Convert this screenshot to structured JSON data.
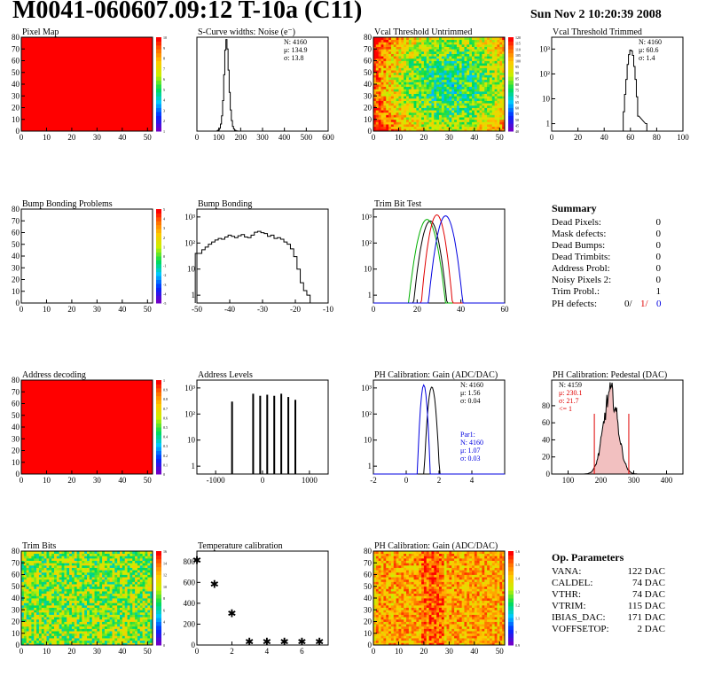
{
  "header": {
    "title": "M0041-060607.09:12 T-10a (C11)",
    "date": "Sun Nov  2 10:20:39 2008"
  },
  "colors": {
    "map_red": "#ff0000",
    "heat_low": "#2020ff",
    "heat_high": "#ff2000",
    "black": "#000000",
    "green": "#00b000",
    "red": "#e00000",
    "blue": "#0000e0"
  },
  "summary": {
    "title": "Summary",
    "items": [
      {
        "label": "Dead Pixels:",
        "value": "0"
      },
      {
        "label": "Mask defects:",
        "value": "0"
      },
      {
        "label": "Dead Bumps:",
        "value": "0"
      },
      {
        "label": "Dead Trimbits:",
        "value": "0"
      },
      {
        "label": "Address Probl:",
        "value": "0"
      },
      {
        "label": "Noisy Pixels 2:",
        "value": "0"
      },
      {
        "label": "Trim Probl.:",
        "value": "1"
      }
    ],
    "ph_defects": {
      "label": "PH defects:",
      "v1": "0/",
      "v2": "1/",
      "v3": "0"
    }
  },
  "op_params": {
    "title": "Op. Parameters",
    "items": [
      {
        "label": "VANA:",
        "value": "122 DAC"
      },
      {
        "label": "CALDEL:",
        "value": "74 DAC"
      },
      {
        "label": "VTHR:",
        "value": "74 DAC"
      },
      {
        "label": "VTRIM:",
        "value": "115 DAC"
      },
      {
        "label": "IBIAS_DAC:",
        "value": "171 DAC"
      },
      {
        "label": "VOFFSETOP:",
        "value": "2 DAC"
      }
    ]
  },
  "chart_data": [
    {
      "id": "pixel-map",
      "type": "heatmap",
      "title": "Pixel Map",
      "xlim": [
        0,
        52
      ],
      "ylim": [
        0,
        80
      ],
      "xticks": [
        "0",
        "10",
        "20",
        "30",
        "40",
        "50"
      ],
      "yticks": [
        "0",
        "10",
        "20",
        "30",
        "40",
        "50",
        "60",
        "70",
        "80"
      ],
      "colorbar": "rainbow",
      "cbar_ticks": [
        "1",
        "2",
        "3",
        "4",
        "5",
        "6",
        "7",
        "8",
        "9",
        "10"
      ],
      "fill": "uniform_red"
    },
    {
      "id": "scurve-noise",
      "type": "bar",
      "title": "S-Curve widths: Noise (e⁻)",
      "xlim": [
        0,
        600
      ],
      "ylim": [
        0,
        800
      ],
      "xticks": [
        "0",
        "100",
        "200",
        "300",
        "400",
        "500",
        "600"
      ],
      "yticks": [],
      "stats": [
        "N: 4160",
        "μ: 134.9",
        "σ: 13.8"
      ],
      "x": [
        95,
        100,
        105,
        110,
        115,
        120,
        125,
        130,
        135,
        140,
        145,
        150,
        155,
        160,
        165,
        170,
        175,
        180,
        185
      ],
      "values": [
        5,
        10,
        25,
        60,
        130,
        260,
        480,
        690,
        780,
        700,
        520,
        330,
        180,
        90,
        40,
        18,
        8,
        3,
        1
      ]
    },
    {
      "id": "vcal-untrimmed",
      "type": "heatmap",
      "title": "Vcal Threshold Untrimmed",
      "xlim": [
        0,
        52
      ],
      "ylim": [
        0,
        80
      ],
      "xticks": [
        "0",
        "10",
        "20",
        "30",
        "40",
        "50"
      ],
      "yticks": [
        "0",
        "10",
        "20",
        "30",
        "40",
        "50",
        "60",
        "70",
        "80"
      ],
      "colorbar": "rainbow",
      "cbar_ticks": [
        "40",
        "45",
        "50",
        "55",
        "60",
        "65",
        "70",
        "75",
        "80",
        "85",
        "90",
        "95",
        "100",
        "105",
        "110",
        "115",
        "120"
      ],
      "fill": "noise_cool"
    },
    {
      "id": "vcal-trimmed",
      "type": "bar",
      "title": "Vcal Threshold Trimmed",
      "xlim": [
        0,
        100
      ],
      "ylim": [
        0.5,
        3000
      ],
      "ylog": true,
      "xticks": [
        "0",
        "20",
        "40",
        "60",
        "80",
        "100"
      ],
      "yticks": [
        "1",
        "10",
        "10²",
        "10³"
      ],
      "stats": [
        "N: 4160",
        "μ: 60.6",
        "σ:  1.4"
      ],
      "x": [
        55,
        56,
        57,
        58,
        59,
        60,
        61,
        62,
        63,
        64,
        65,
        66,
        72
      ],
      "values": [
        3,
        15,
        60,
        240,
        600,
        900,
        850,
        560,
        200,
        60,
        12,
        2,
        1
      ]
    },
    {
      "id": "bump-bonding-problems",
      "type": "heatmap",
      "title": "Bump Bonding Problems",
      "xlim": [
        0,
        52
      ],
      "ylim": [
        0,
        80
      ],
      "xticks": [
        "0",
        "10",
        "20",
        "30",
        "40",
        "50"
      ],
      "yticks": [
        "0",
        "10",
        "20",
        "30",
        "40",
        "50",
        "60",
        "70",
        "80"
      ],
      "colorbar": "rainbow",
      "cbar_ticks": [
        "-5",
        "-4",
        "-3",
        "-2",
        "-1",
        "0",
        "1",
        "2",
        "3",
        "4",
        "5"
      ],
      "fill": "empty"
    },
    {
      "id": "bump-bonding",
      "type": "bar",
      "title": "Bump Bonding",
      "xlim": [
        -50,
        -10
      ],
      "ylim": [
        0.5,
        2000
      ],
      "ylog": true,
      "xticks": [
        "-50",
        "-40",
        "-30",
        "-20",
        "-10"
      ],
      "yticks": [
        "1",
        "10",
        "10²",
        "10³"
      ],
      "x": [
        -50,
        -49,
        -48,
        -47,
        -46,
        -45,
        -44,
        -43,
        -42,
        -41,
        -40,
        -39,
        -38,
        -37,
        -36,
        -35,
        -34,
        -33,
        -32,
        -31,
        -30,
        -29,
        -28,
        -27,
        -26,
        -25,
        -24,
        -23,
        -22,
        -21,
        -20,
        -19,
        -18,
        -17,
        -16
      ],
      "values": [
        40,
        40,
        55,
        70,
        90,
        110,
        130,
        150,
        140,
        170,
        200,
        180,
        160,
        190,
        210,
        170,
        160,
        200,
        260,
        280,
        250,
        230,
        180,
        200,
        150,
        160,
        140,
        110,
        90,
        60,
        30,
        10,
        3,
        1.5,
        1
      ]
    },
    {
      "id": "trim-bit-test",
      "type": "line",
      "title": "Trim Bit Test",
      "xlim": [
        0,
        60
      ],
      "ylim": [
        0.5,
        2000
      ],
      "ylog": true,
      "xticks": [
        "0",
        "20",
        "40",
        "60"
      ],
      "yticks": [
        "1",
        "10",
        "10²",
        "10³"
      ],
      "series": [
        {
          "color": "black",
          "center": 26,
          "width": 2.0,
          "peak": 700
        },
        {
          "color": "green",
          "center": 24.5,
          "width": 2.2,
          "peak": 800
        },
        {
          "color": "red",
          "center": 29,
          "width": 1.8,
          "peak": 1200
        },
        {
          "color": "blue",
          "center": 33,
          "width": 2.0,
          "peak": 1100
        }
      ]
    },
    {
      "id": "address-decoding",
      "type": "heatmap",
      "title": "Address decoding",
      "xlim": [
        0,
        52
      ],
      "ylim": [
        0,
        80
      ],
      "xticks": [
        "0",
        "10",
        "20",
        "30",
        "40",
        "50"
      ],
      "yticks": [
        "0",
        "10",
        "20",
        "30",
        "40",
        "50",
        "60",
        "70",
        "80"
      ],
      "colorbar": "rainbow",
      "cbar_ticks": [
        "0",
        "0.1",
        "0.2",
        "0.3",
        "0.4",
        "0.5",
        "0.6",
        "0.7",
        "0.8",
        "0.9",
        "1"
      ],
      "fill": "uniform_red"
    },
    {
      "id": "address-levels",
      "type": "bar",
      "title": "Address Levels",
      "xlim": [
        -1400,
        1400
      ],
      "ylim": [
        0.5,
        2000
      ],
      "ylog": true,
      "xticks": [
        "-1000",
        "0",
        "1000"
      ],
      "yticks": [
        "1",
        "10",
        "10²",
        "10³"
      ],
      "x": [
        -650,
        -200,
        -50,
        100,
        250,
        400,
        550,
        700
      ],
      "values": [
        300,
        600,
        500,
        550,
        500,
        600,
        450,
        350
      ]
    },
    {
      "id": "ph-gain-hist",
      "type": "bar",
      "title": "PH Calibration: Gain (ADC/DAC)",
      "xlim": [
        -2,
        6
      ],
      "ylim": [
        0.5,
        2000
      ],
      "ylog": true,
      "xticks": [
        "-2",
        "0",
        "2",
        "4"
      ],
      "yticks": [
        "1",
        "10",
        "10²",
        "10³"
      ],
      "stats": [
        "N: 4160",
        "μ: 1.56",
        "σ: 0.04"
      ],
      "stats2": [
        "Par1:",
        "N: 4160",
        "μ: 1.07",
        "σ: 0.03"
      ],
      "series": [
        {
          "color": "black",
          "center": 1.56,
          "width": 0.12,
          "peak": 1100
        },
        {
          "color": "blue",
          "center": 1.07,
          "width": 0.1,
          "peak": 1300
        }
      ]
    },
    {
      "id": "ph-pedestal",
      "type": "bar",
      "title": "PH Calibration: Pedestal (DAC)",
      "xlim": [
        50,
        450
      ],
      "ylim": [
        0,
        110
      ],
      "xticks": [
        "100",
        "200",
        "300",
        "400"
      ],
      "yticks": [
        "0",
        "20",
        "40",
        "60",
        "80"
      ],
      "stats": [
        "N: 4159",
        "μ: 230.1",
        "σ: 21.7",
        "<= 1"
      ],
      "center": 230,
      "width": 22,
      "peak": 95,
      "cut_lines": [
        180,
        285
      ]
    },
    {
      "id": "trim-bits",
      "type": "heatmap",
      "title": "Trim Bits",
      "xlim": [
        0,
        52
      ],
      "ylim": [
        0,
        80
      ],
      "xticks": [
        "0",
        "10",
        "20",
        "30",
        "40",
        "50"
      ],
      "yticks": [
        "0",
        "10",
        "20",
        "30",
        "40",
        "50",
        "60",
        "70",
        "80"
      ],
      "colorbar": "rainbow",
      "cbar_ticks": [
        "0",
        "2",
        "4",
        "6",
        "8",
        "10",
        "12",
        "14",
        "16"
      ],
      "fill": "noise_mid"
    },
    {
      "id": "temperature-calibration",
      "type": "scatter",
      "title": "Temperature calibration",
      "xlim": [
        0,
        7.5
      ],
      "ylim": [
        0,
        900
      ],
      "xticks": [
        "0",
        "2",
        "4",
        "6"
      ],
      "yticks": [
        "0",
        "200",
        "400",
        "600",
        "800"
      ],
      "x": [
        0,
        1,
        2,
        3,
        4,
        5,
        6,
        7
      ],
      "values": [
        820,
        590,
        310,
        40,
        40,
        40,
        40,
        40
      ]
    },
    {
      "id": "ph-gain-map",
      "type": "heatmap",
      "title": "PH Calibration: Gain (ADC/DAC)",
      "xlim": [
        0,
        52
      ],
      "ylim": [
        0,
        80
      ],
      "xticks": [
        "0",
        "10",
        "20",
        "30",
        "40",
        "50"
      ],
      "yticks": [
        "0",
        "10",
        "20",
        "30",
        "40",
        "50",
        "60",
        "70",
        "80"
      ],
      "colorbar": "rainbow",
      "cbar_ticks": [
        "0.9",
        "1",
        "1.1",
        "1.2",
        "1.3",
        "1.4",
        "1.5",
        "1.6"
      ],
      "fill": "noise_hot"
    }
  ]
}
